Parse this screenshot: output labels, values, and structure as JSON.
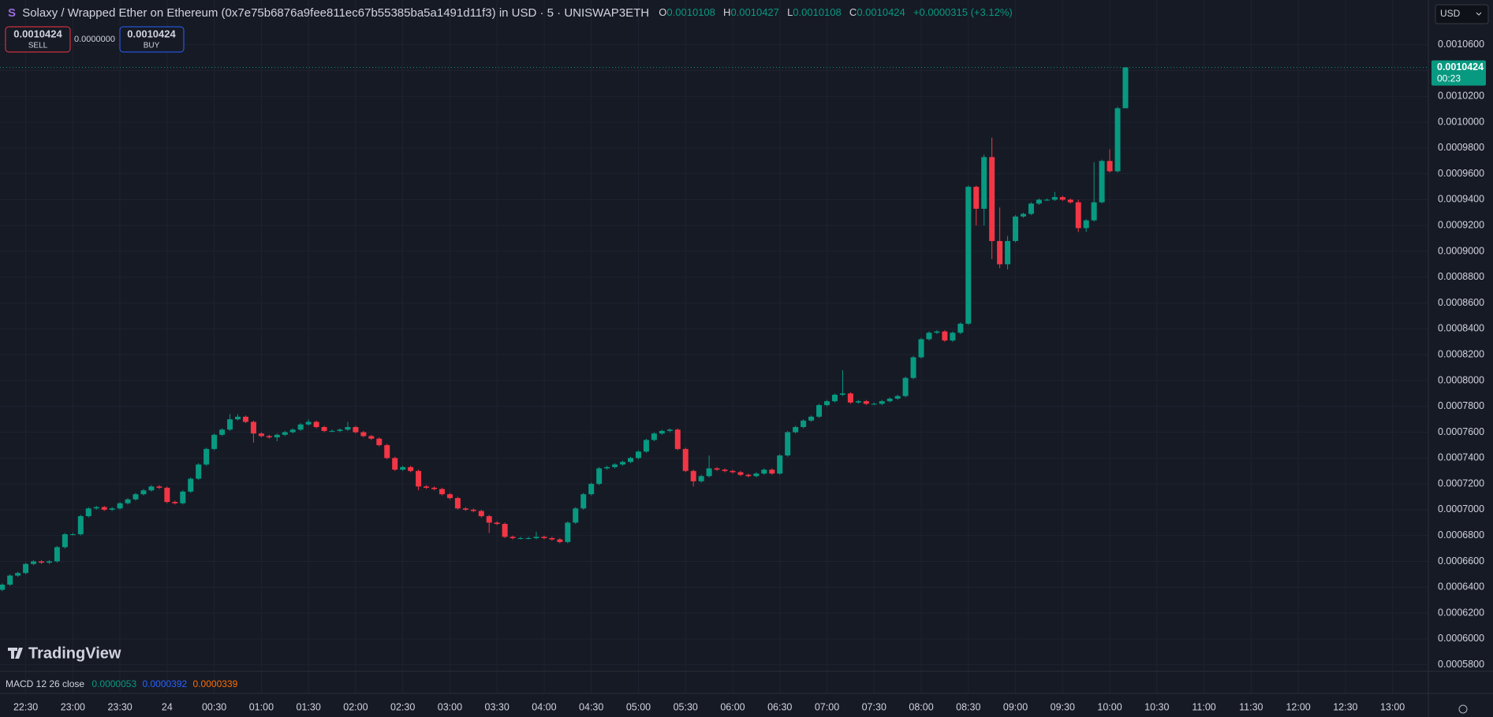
{
  "chart_data": {
    "type": "candlestick",
    "symbol_icon": "S",
    "title": "Solaxy / Wrapped Ether on Ethereum (0x7e75b6876a9fee811ec67b55385ba5a1491d11f3) in USD · 5 · UNISWAP3ETH",
    "legend": {
      "o_label": "O",
      "o": "0.0010108",
      "h_label": "H",
      "h": "0.0010427",
      "l_label": "L",
      "l": "0.0010108",
      "c_label": "C",
      "c": "0.0010424",
      "change": "+0.0000315 (+3.12%)"
    },
    "up_color": "#089981",
    "down_color": "#f23645",
    "grid": true,
    "x": [
      "22:15",
      "22:20",
      "22:25",
      "22:30",
      "22:35",
      "22:40",
      "22:45",
      "22:50",
      "22:55",
      "23:00",
      "23:05",
      "23:10",
      "23:15",
      "23:20",
      "23:25",
      "23:30",
      "23:35",
      "23:40",
      "23:45",
      "23:50",
      "23:55",
      "00:00",
      "00:05",
      "00:10",
      "00:15",
      "00:20",
      "00:25",
      "00:30",
      "00:35",
      "00:40",
      "00:45",
      "00:50",
      "00:55",
      "01:00",
      "01:05",
      "01:10",
      "01:15",
      "01:20",
      "01:25",
      "01:30",
      "01:35",
      "01:40",
      "01:45",
      "01:50",
      "01:55",
      "02:00",
      "02:05",
      "02:10",
      "02:15",
      "02:20",
      "02:25",
      "02:30",
      "02:35",
      "02:40",
      "02:45",
      "02:50",
      "02:55",
      "03:00",
      "03:05",
      "03:10",
      "03:15",
      "03:20",
      "03:25",
      "03:30",
      "03:35",
      "03:40",
      "03:45",
      "03:50",
      "03:55",
      "04:00",
      "04:05",
      "04:10",
      "04:15",
      "04:20",
      "04:25",
      "04:30",
      "04:35",
      "04:40",
      "04:45",
      "04:50",
      "04:55",
      "05:00",
      "05:05",
      "05:10",
      "05:15",
      "05:20",
      "05:25",
      "05:30",
      "05:35",
      "05:40",
      "05:45",
      "05:50",
      "05:55",
      "06:00",
      "06:05",
      "06:10",
      "06:15",
      "06:20",
      "06:25",
      "06:30",
      "06:35",
      "06:40",
      "06:45",
      "06:50",
      "06:55",
      "07:00",
      "07:05",
      "07:10",
      "07:15",
      "07:20",
      "07:25",
      "07:30",
      "07:35",
      "07:40",
      "07:45",
      "07:50",
      "07:55",
      "08:00",
      "08:05",
      "08:10",
      "08:15",
      "08:20",
      "08:25",
      "08:30",
      "08:35",
      "08:40",
      "08:45",
      "08:50",
      "08:55",
      "09:00",
      "09:05",
      "09:10",
      "09:15",
      "09:20",
      "09:25",
      "09:30",
      "09:35",
      "09:40",
      "09:45",
      "09:50",
      "09:55",
      "10:00",
      "10:05",
      "10:10"
    ],
    "candles": [
      [
        0.000638,
        0.000643,
        0.000637,
        0.000642
      ],
      [
        0.000642,
        0.00065,
        0.000641,
        0.000649
      ],
      [
        0.000649,
        0.000652,
        0.000648,
        0.000651
      ],
      [
        0.000651,
        0.000659,
        0.00065,
        0.000658
      ],
      [
        0.000658,
        0.000661,
        0.000657,
        0.00066
      ],
      [
        0.00066,
        0.000661,
        0.000658,
        0.000659
      ],
      [
        0.000659,
        0.000661,
        0.000658,
        0.00066
      ],
      [
        0.00066,
        0.000672,
        0.000659,
        0.000671
      ],
      [
        0.000671,
        0.000682,
        0.00067,
        0.000681
      ],
      [
        0.000681,
        0.000682,
        0.00068,
        0.000681
      ],
      [
        0.000681,
        0.000696,
        0.00068,
        0.000695
      ],
      [
        0.000695,
        0.000702,
        0.000694,
        0.000701
      ],
      [
        0.000701,
        0.000703,
        0.0007,
        0.000702
      ],
      [
        0.000702,
        0.000703,
        0.000699,
        0.0007
      ],
      [
        0.0007,
        0.000702,
        0.000699,
        0.000701
      ],
      [
        0.000701,
        0.000706,
        0.0007,
        0.000705
      ],
      [
        0.000705,
        0.000709,
        0.000704,
        0.000708
      ],
      [
        0.000708,
        0.000713,
        0.000707,
        0.000712
      ],
      [
        0.000712,
        0.000716,
        0.000711,
        0.000715
      ],
      [
        0.000715,
        0.000719,
        0.000714,
        0.000718
      ],
      [
        0.000718,
        0.000719,
        0.000716,
        0.000717
      ],
      [
        0.000717,
        0.000718,
        0.000705,
        0.000706
      ],
      [
        0.000706,
        0.000707,
        0.000704,
        0.000705
      ],
      [
        0.000705,
        0.000715,
        0.000704,
        0.000714
      ],
      [
        0.000714,
        0.000725,
        0.000713,
        0.000724
      ],
      [
        0.000724,
        0.000736,
        0.000723,
        0.000735
      ],
      [
        0.000735,
        0.000748,
        0.000734,
        0.000747
      ],
      [
        0.000747,
        0.000759,
        0.000746,
        0.000758
      ],
      [
        0.000758,
        0.000763,
        0.000757,
        0.000762
      ],
      [
        0.000762,
        0.000774,
        0.000761,
        0.00077
      ],
      [
        0.00077,
        0.000774,
        0.000769,
        0.000772
      ],
      [
        0.000772,
        0.000773,
        0.000767,
        0.000768
      ],
      [
        0.000768,
        0.000769,
        0.000752,
        0.000759
      ],
      [
        0.000759,
        0.00076,
        0.000756,
        0.000757
      ],
      [
        0.000757,
        0.000758,
        0.000755,
        0.000756
      ],
      [
        0.000756,
        0.000759,
        0.000753,
        0.000758
      ],
      [
        0.000758,
        0.000761,
        0.000757,
        0.00076
      ],
      [
        0.00076,
        0.000763,
        0.000759,
        0.000762
      ],
      [
        0.000762,
        0.000767,
        0.000761,
        0.000766
      ],
      [
        0.000766,
        0.00077,
        0.000765,
        0.000768
      ],
      [
        0.000768,
        0.000769,
        0.000763,
        0.000764
      ],
      [
        0.000764,
        0.000765,
        0.00076,
        0.000761
      ],
      [
        0.000761,
        0.000762,
        0.00076,
        0.000761
      ],
      [
        0.000761,
        0.000763,
        0.00076,
        0.000762
      ],
      [
        0.000762,
        0.000768,
        0.000761,
        0.000764
      ],
      [
        0.000764,
        0.000765,
        0.000759,
        0.00076
      ],
      [
        0.00076,
        0.000761,
        0.000756,
        0.000757
      ],
      [
        0.000757,
        0.000758,
        0.000754,
        0.000755
      ],
      [
        0.000755,
        0.000756,
        0.000749,
        0.00075
      ],
      [
        0.00075,
        0.000751,
        0.000739,
        0.00074
      ],
      [
        0.00074,
        0.000741,
        0.00073,
        0.000731
      ],
      [
        0.000731,
        0.000734,
        0.00073,
        0.000733
      ],
      [
        0.000733,
        0.000734,
        0.000729,
        0.00073
      ],
      [
        0.00073,
        0.000731,
        0.000715,
        0.000718
      ],
      [
        0.000718,
        0.000719,
        0.000716,
        0.000717
      ],
      [
        0.000717,
        0.000718,
        0.000715,
        0.000716
      ],
      [
        0.000716,
        0.000717,
        0.000711,
        0.000712
      ],
      [
        0.000712,
        0.000713,
        0.000708,
        0.000709
      ],
      [
        0.000709,
        0.00071,
        0.0007,
        0.000701
      ],
      [
        0.000701,
        0.000702,
        0.000699,
        0.0007
      ],
      [
        0.0007,
        0.000701,
        0.000698,
        0.000699
      ],
      [
        0.000699,
        0.0007,
        0.000694,
        0.000695
      ],
      [
        0.000695,
        0.000696,
        0.000682,
        0.00069
      ],
      [
        0.00069,
        0.000691,
        0.000688,
        0.000689
      ],
      [
        0.000689,
        0.00069,
        0.000678,
        0.000679
      ],
      [
        0.000679,
        0.00068,
        0.000677,
        0.000678
      ],
      [
        0.000678,
        0.000679,
        0.000677,
        0.000678
      ],
      [
        0.000678,
        0.000679,
        0.000677,
        0.000678
      ],
      [
        0.000678,
        0.000683,
        0.000677,
        0.000679
      ],
      [
        0.000679,
        0.00068,
        0.000677,
        0.000678
      ],
      [
        0.000678,
        0.000679,
        0.000676,
        0.000677
      ],
      [
        0.000677,
        0.000678,
        0.000674,
        0.000675
      ],
      [
        0.000675,
        0.000691,
        0.000674,
        0.00069
      ],
      [
        0.00069,
        0.000702,
        0.000689,
        0.000701
      ],
      [
        0.000701,
        0.000713,
        0.0007,
        0.000712
      ],
      [
        0.000712,
        0.000721,
        0.000711,
        0.00072
      ],
      [
        0.00072,
        0.000733,
        0.000719,
        0.000732
      ],
      [
        0.000732,
        0.000734,
        0.000731,
        0.000733
      ],
      [
        0.000733,
        0.000736,
        0.000732,
        0.000735
      ],
      [
        0.000735,
        0.000738,
        0.000734,
        0.000737
      ],
      [
        0.000737,
        0.000741,
        0.000736,
        0.00074
      ],
      [
        0.00074,
        0.000746,
        0.000739,
        0.000745
      ],
      [
        0.000745,
        0.000755,
        0.000744,
        0.000754
      ],
      [
        0.000754,
        0.00076,
        0.000753,
        0.000759
      ],
      [
        0.000759,
        0.000762,
        0.000758,
        0.000761
      ],
      [
        0.000761,
        0.000763,
        0.00076,
        0.000762
      ],
      [
        0.000762,
        0.000763,
        0.000746,
        0.000747
      ],
      [
        0.000747,
        0.000748,
        0.000729,
        0.00073
      ],
      [
        0.00073,
        0.000731,
        0.000718,
        0.000722
      ],
      [
        0.000722,
        0.000727,
        0.000721,
        0.000726
      ],
      [
        0.000726,
        0.000742,
        0.000725,
        0.000732
      ],
      [
        0.000732,
        0.000733,
        0.00073,
        0.000731
      ],
      [
        0.000731,
        0.000732,
        0.000729,
        0.00073
      ],
      [
        0.00073,
        0.000731,
        0.000728,
        0.000729
      ],
      [
        0.000729,
        0.00073,
        0.000726,
        0.000727
      ],
      [
        0.000727,
        0.000728,
        0.000725,
        0.000726
      ],
      [
        0.000726,
        0.000729,
        0.000725,
        0.000728
      ],
      [
        0.000728,
        0.000732,
        0.000727,
        0.000731
      ],
      [
        0.000731,
        0.000732,
        0.000727,
        0.000728
      ],
      [
        0.000728,
        0.000743,
        0.000727,
        0.000742
      ],
      [
        0.000742,
        0.000761,
        0.000741,
        0.00076
      ],
      [
        0.00076,
        0.000765,
        0.000759,
        0.000764
      ],
      [
        0.000764,
        0.00077,
        0.000763,
        0.000769
      ],
      [
        0.000769,
        0.000773,
        0.000768,
        0.000772
      ],
      [
        0.000772,
        0.000782,
        0.000771,
        0.000781
      ],
      [
        0.000781,
        0.000785,
        0.00078,
        0.000784
      ],
      [
        0.000784,
        0.00079,
        0.000783,
        0.000789
      ],
      [
        0.000789,
        0.000808,
        0.000788,
        0.00079
      ],
      [
        0.00079,
        0.000791,
        0.000782,
        0.000783
      ],
      [
        0.000783,
        0.000785,
        0.000782,
        0.000784
      ],
      [
        0.000784,
        0.000785,
        0.000781,
        0.000782
      ],
      [
        0.000782,
        0.000783,
        0.000781,
        0.000782
      ],
      [
        0.000782,
        0.000785,
        0.000781,
        0.000784
      ],
      [
        0.000784,
        0.000787,
        0.000783,
        0.000786
      ],
      [
        0.000786,
        0.000789,
        0.000785,
        0.000788
      ],
      [
        0.000788,
        0.000803,
        0.000787,
        0.000802
      ],
      [
        0.000802,
        0.000819,
        0.000801,
        0.000818
      ],
      [
        0.000818,
        0.000833,
        0.000817,
        0.000832
      ],
      [
        0.000832,
        0.000838,
        0.000831,
        0.000837
      ],
      [
        0.000837,
        0.000839,
        0.000836,
        0.000838
      ],
      [
        0.000838,
        0.000839,
        0.00083,
        0.000831
      ],
      [
        0.000831,
        0.000838,
        0.00083,
        0.000837
      ],
      [
        0.000837,
        0.000845,
        0.000836,
        0.000844
      ],
      [
        0.000844,
        0.000951,
        0.000843,
        0.00095
      ],
      [
        0.00095,
        0.000951,
        0.00092,
        0.000933
      ],
      [
        0.000933,
        0.000975,
        0.00092,
        0.000973
      ],
      [
        0.000973,
        0.000988,
        0.000894,
        0.000908
      ],
      [
        0.000908,
        0.000934,
        0.000887,
        0.00089
      ],
      [
        0.00089,
        0.000912,
        0.000886,
        0.000908
      ],
      [
        0.000908,
        0.000928,
        0.000907,
        0.000927
      ],
      [
        0.000927,
        0.00093,
        0.000926,
        0.000929
      ],
      [
        0.000929,
        0.000938,
        0.000928,
        0.000937
      ],
      [
        0.000937,
        0.000941,
        0.000936,
        0.00094
      ],
      [
        0.00094,
        0.000941,
        0.000939,
        0.00094
      ],
      [
        0.00094,
        0.000946,
        0.000939,
        0.000942
      ],
      [
        0.000942,
        0.000943,
        0.000939,
        0.00094
      ],
      [
        0.00094,
        0.000941,
        0.000937,
        0.000938
      ],
      [
        0.000938,
        0.00094,
        0.000915,
        0.000918
      ],
      [
        0.000918,
        0.000925,
        0.000915,
        0.000924
      ],
      [
        0.000924,
        0.000969,
        0.000923,
        0.000938
      ],
      [
        0.000938,
        0.000971,
        0.000937,
        0.00097
      ],
      [
        0.00097,
        0.000979,
        0.000961,
        0.000962
      ],
      [
        0.000962,
        0.001012,
        0.000961,
        0.0010108
      ],
      [
        0.0010108,
        0.0010427,
        0.0010108,
        0.0010424
      ]
    ],
    "ylim": [
      0.0005749,
      0.0010946
    ],
    "yticks": [
      {
        "value": 0.00058,
        "label": "0.0005800"
      },
      {
        "value": 0.0006,
        "label": "0.0006000"
      },
      {
        "value": 0.00062,
        "label": "0.0006200"
      },
      {
        "value": 0.00064,
        "label": "0.0006400"
      },
      {
        "value": 0.00066,
        "label": "0.0006600"
      },
      {
        "value": 0.00068,
        "label": "0.0006800"
      },
      {
        "value": 0.0007,
        "label": "0.0007000"
      },
      {
        "value": 0.00072,
        "label": "0.0007200"
      },
      {
        "value": 0.00074,
        "label": "0.0007400"
      },
      {
        "value": 0.00076,
        "label": "0.0007600"
      },
      {
        "value": 0.00078,
        "label": "0.0007800"
      },
      {
        "value": 0.0008,
        "label": "0.0008000"
      },
      {
        "value": 0.00082,
        "label": "0.0008200"
      },
      {
        "value": 0.00084,
        "label": "0.0008400"
      },
      {
        "value": 0.00086,
        "label": "0.0008600"
      },
      {
        "value": 0.00088,
        "label": "0.0008800"
      },
      {
        "value": 0.0009,
        "label": "0.0009000"
      },
      {
        "value": 0.00092,
        "label": "0.0009200"
      },
      {
        "value": 0.00094,
        "label": "0.0009400"
      },
      {
        "value": 0.00096,
        "label": "0.0009600"
      },
      {
        "value": 0.00098,
        "label": "0.0009800"
      },
      {
        "value": 0.001,
        "label": "0.0010000"
      },
      {
        "value": 0.00102,
        "label": "0.0010200"
      },
      {
        "value": 0.00104,
        "label": "0.0010400"
      },
      {
        "value": 0.00106,
        "label": "0.0010600"
      }
    ],
    "xticks": [
      "22:30",
      "23:00",
      "23:30",
      "24",
      "00:30",
      "01:00",
      "01:30",
      "02:00",
      "02:30",
      "03:00",
      "03:30",
      "04:00",
      "04:30",
      "05:00",
      "05:30",
      "06:00",
      "06:30",
      "07:00",
      "07:30",
      "08:00",
      "08:30",
      "09:00",
      "09:30",
      "10:00",
      "10:30",
      "11:00",
      "11:30",
      "12:00",
      "12:30",
      "13:00"
    ],
    "price_tag": {
      "value": 0.0010424,
      "label": "0.0010424",
      "countdown": "00:23"
    }
  },
  "trade": {
    "sell_price": "0.0010424",
    "sell": "SELL",
    "spread": "0.0000000",
    "buy_price": "0.0010424",
    "buy": "BUY"
  },
  "currency": "USD",
  "logo": "TradingView",
  "macd": {
    "label": "MACD 12 26 close",
    "values": [
      {
        "text": "0.0000053",
        "color": "#089981"
      },
      {
        "text": "0.0000392",
        "color": "#2962ff"
      },
      {
        "text": "0.0000339",
        "color": "#ff6d00"
      }
    ]
  }
}
